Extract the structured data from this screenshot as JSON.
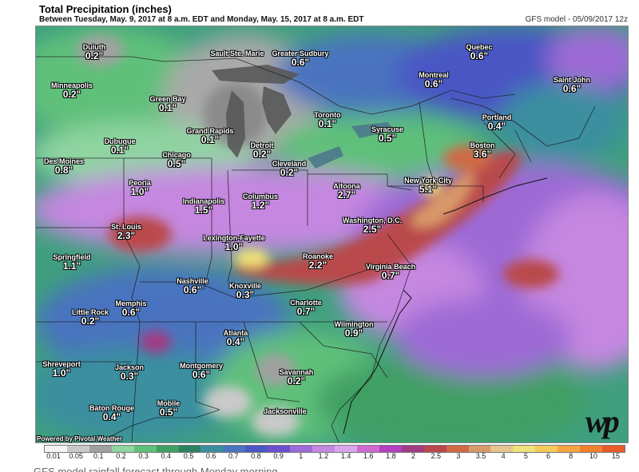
{
  "header": {
    "title": "Total Precipitation (inches)",
    "subtitle": "Between Tuesday, May. 9, 2017 at 8 a.m. EDT and Monday, May. 15, 2017 at 8 a.m. EDT",
    "model": "GFS model - 05/09/2017 12z"
  },
  "cities": [
    {
      "name": "Duluth",
      "amount": "0.2\""
    },
    {
      "name": "Sault Ste. Marie",
      "amount": ""
    },
    {
      "name": "Greater Sudbury",
      "amount": "0.6\""
    },
    {
      "name": "Quebec",
      "amount": "0.6\""
    },
    {
      "name": "Minneapolis",
      "amount": "0.2\""
    },
    {
      "name": "Green Bay",
      "amount": "0.1\""
    },
    {
      "name": "Montreal",
      "amount": "0.6\""
    },
    {
      "name": "Saint John",
      "amount": "0.6\""
    },
    {
      "name": "Toronto",
      "amount": "0.1\""
    },
    {
      "name": "Portland",
      "amount": "0.4\""
    },
    {
      "name": "Grand Rapids",
      "amount": "0.1\""
    },
    {
      "name": "Syracuse",
      "amount": "0.5\""
    },
    {
      "name": "Dubuque",
      "amount": "0.1\""
    },
    {
      "name": "Detroit",
      "amount": "0.2\""
    },
    {
      "name": "Boston",
      "amount": "3.6\""
    },
    {
      "name": "Chicago",
      "amount": "0.5\""
    },
    {
      "name": "Cleveland",
      "amount": "0.2\""
    },
    {
      "name": "Des Moines",
      "amount": "0.8\""
    },
    {
      "name": "Peoria",
      "amount": "1.0\""
    },
    {
      "name": "Altoona",
      "amount": "2.7\""
    },
    {
      "name": "New York City",
      "amount": "5.1\""
    },
    {
      "name": "Columbus",
      "amount": "1.2\""
    },
    {
      "name": "Indianapolis",
      "amount": "1.5\""
    },
    {
      "name": "Washington, D.C.",
      "amount": "2.5\""
    },
    {
      "name": "St. Louis",
      "amount": "2.3\""
    },
    {
      "name": "Lexington-Fayette",
      "amount": "1.0\""
    },
    {
      "name": "Springfield",
      "amount": "1.1\""
    },
    {
      "name": "Roanoke",
      "amount": "2.2\""
    },
    {
      "name": "Virginia Beach",
      "amount": "0.7\""
    },
    {
      "name": "Nashville",
      "amount": "0.6\""
    },
    {
      "name": "Knoxville",
      "amount": "0.3\""
    },
    {
      "name": "Charlotte",
      "amount": "0.7\""
    },
    {
      "name": "Memphis",
      "amount": "0.6\""
    },
    {
      "name": "Little Rock",
      "amount": "0.2\""
    },
    {
      "name": "Wilmington",
      "amount": "0.9\""
    },
    {
      "name": "Atlanta",
      "amount": "0.4\""
    },
    {
      "name": "Shreveport",
      "amount": "1.0\""
    },
    {
      "name": "Jackson",
      "amount": "0.3\""
    },
    {
      "name": "Montgomery",
      "amount": "0.6\""
    },
    {
      "name": "Savannah",
      "amount": "0.2\""
    },
    {
      "name": "Baton Rouge",
      "amount": "0.4\""
    },
    {
      "name": "Mobile",
      "amount": "0.5\""
    },
    {
      "name": "Jacksonville",
      "amount": ""
    }
  ],
  "credit": "Powered by Pivotal Weather",
  "logo": "wp",
  "legend": {
    "ticks": [
      "0.01",
      "0.05",
      "0.1",
      "0.2",
      "0.3",
      "0.4",
      "0.5",
      "0.6",
      "0.7",
      "0.8",
      "0.9",
      "1",
      "1.2",
      "1.4",
      "1.6",
      "1.8",
      "2",
      "2.5",
      "3",
      "3.5",
      "4",
      "5",
      "6",
      "8",
      "10",
      "15"
    ],
    "colors": [
      "#f4f4f4",
      "#c9c9c9",
      "#a0a0a0",
      "#8fd4a1",
      "#5fc07a",
      "#3f9f63",
      "#2e8063",
      "#3a8f9f",
      "#4a73bf",
      "#4a57c4",
      "#6a4fcf",
      "#9d6ad6",
      "#c587e0",
      "#d9a6ea",
      "#d06ad3",
      "#b43fbf",
      "#a33a84",
      "#b9484c",
      "#cf6a45",
      "#d99a6a",
      "#e5c58f",
      "#efe27a",
      "#f5c95a",
      "#f4a441",
      "#f08030",
      "#e85a2a"
    ]
  },
  "caption": "GFS model rainfall forecast through Monday morning."
}
